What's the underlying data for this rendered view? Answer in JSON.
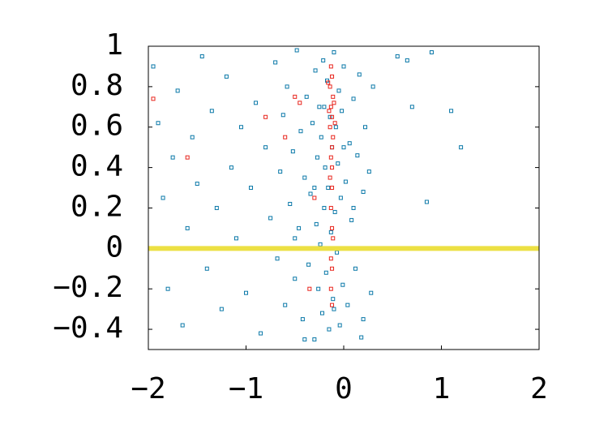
{
  "chart_data": {
    "type": "scatter",
    "xlim": [
      -2,
      2
    ],
    "ylim": [
      -0.5,
      1
    ],
    "xticks": [
      {
        "value": -2,
        "label": "−2"
      },
      {
        "value": -1,
        "label": "−1"
      },
      0,
      1,
      2
    ],
    "yticks": [
      {
        "value": -0.4,
        "label": "−0.4"
      },
      {
        "value": -0.2,
        "label": "−0.2"
      },
      0,
      0.2,
      0.4,
      0.6,
      0.8,
      1
    ],
    "hline": {
      "value": 0,
      "color": "#ece043"
    },
    "series": [
      {
        "color": "#0a78a8",
        "x": [
          -1.95,
          -1.9,
          -1.85,
          -1.8,
          -1.75,
          -1.7,
          -1.65,
          -1.6,
          -1.55,
          -1.5,
          -1.45,
          -1.4,
          -1.35,
          -1.3,
          -1.25,
          -1.2,
          -1.15,
          -1.1,
          -1.05,
          -1.0,
          -0.95,
          -0.9,
          -0.85,
          -0.8,
          -0.75,
          -0.7,
          -0.68,
          -0.65,
          -0.62,
          -0.6,
          -0.58,
          -0.55,
          -0.52,
          -0.5,
          -0.48,
          -0.46,
          -0.44,
          -0.42,
          -0.4,
          -0.38,
          -0.36,
          -0.34,
          -0.32,
          -0.3,
          -0.29,
          -0.28,
          -0.27,
          -0.26,
          -0.25,
          -0.24,
          -0.23,
          -0.22,
          -0.21,
          -0.2,
          -0.19,
          -0.18,
          -0.17,
          -0.16,
          -0.15,
          -0.14,
          -0.13,
          -0.12,
          -0.11,
          -0.1,
          -0.09,
          -0.08,
          -0.07,
          -0.06,
          -0.05,
          -0.04,
          -0.03,
          -0.02,
          -0.01,
          0.0,
          0.02,
          0.04,
          0.06,
          0.08,
          0.1,
          0.12,
          0.14,
          0.16,
          0.18,
          0.2,
          0.22,
          0.24,
          0.26,
          0.28,
          0.3,
          -0.5,
          -0.4,
          -0.3,
          -0.2,
          -0.1,
          0.0,
          0.1,
          0.2,
          0.55,
          0.65,
          0.7,
          0.9,
          1.1,
          1.2,
          0.85
        ],
        "values": [
          0.9,
          0.62,
          0.25,
          -0.2,
          0.45,
          0.78,
          -0.38,
          0.1,
          0.55,
          0.32,
          0.95,
          -0.1,
          0.68,
          0.2,
          -0.3,
          0.85,
          0.4,
          0.05,
          0.6,
          -0.22,
          0.3,
          0.72,
          -0.42,
          0.5,
          0.15,
          0.92,
          -0.05,
          0.38,
          0.66,
          -0.28,
          0.8,
          0.22,
          0.48,
          -0.15,
          0.98,
          0.1,
          0.58,
          -0.35,
          0.35,
          0.75,
          -0.08,
          0.27,
          0.62,
          -0.45,
          0.88,
          0.12,
          0.45,
          -0.2,
          0.7,
          0.02,
          0.55,
          -0.32,
          0.93,
          0.2,
          0.4,
          -0.12,
          0.83,
          0.3,
          -0.4,
          0.65,
          0.08,
          0.5,
          -0.25,
          0.97,
          0.18,
          0.6,
          -0.02,
          0.42,
          0.78,
          -0.38,
          0.25,
          0.68,
          -0.18,
          0.9,
          0.33,
          -0.28,
          0.52,
          0.14,
          0.74,
          -0.1,
          0.46,
          0.86,
          -0.44,
          0.28,
          0.6,
          0.0,
          0.38,
          -0.22,
          0.8,
          0.05,
          -0.45,
          0.3,
          0.7,
          -0.3,
          0.5,
          0.2,
          -0.35,
          0.95,
          0.93,
          0.7,
          0.97,
          0.68,
          0.5,
          0.23
        ]
      },
      {
        "color": "#e8241c",
        "x": [
          -0.13,
          -0.12,
          -0.14,
          -0.11,
          -0.13,
          -0.12,
          -0.14,
          -0.11,
          -0.12,
          -0.13,
          -0.12,
          -0.14,
          -0.12,
          -0.13,
          -0.12,
          -0.11,
          -0.13,
          -0.12,
          -0.13,
          -0.12,
          -0.1,
          -0.15,
          -0.09,
          -0.16,
          -0.3,
          -0.5,
          -0.6,
          -1.6,
          -1.95,
          -0.8,
          -0.35,
          -0.45
        ],
        "values": [
          0.9,
          0.85,
          0.8,
          0.75,
          0.7,
          0.65,
          0.6,
          0.55,
          0.5,
          0.45,
          0.4,
          0.35,
          0.3,
          0.2,
          0.1,
          0.05,
          -0.05,
          -0.1,
          -0.2,
          -0.28,
          0.72,
          0.68,
          0.62,
          0.82,
          0.25,
          0.75,
          0.55,
          0.45,
          0.74,
          0.65,
          -0.2,
          0.72
        ]
      }
    ]
  }
}
